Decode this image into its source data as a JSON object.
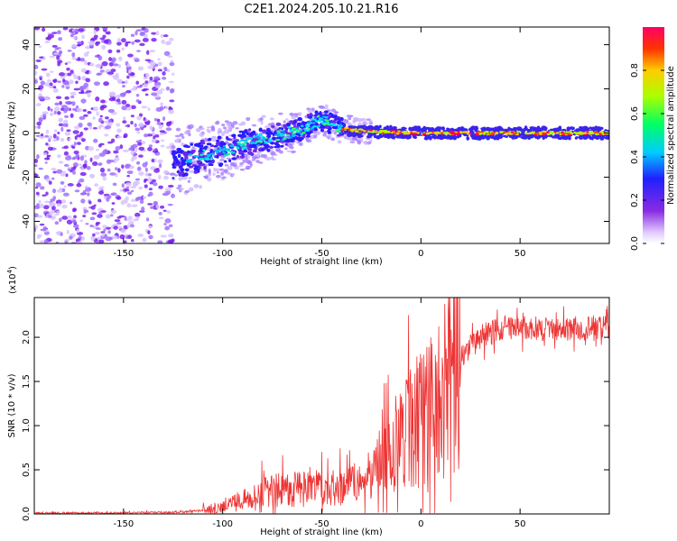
{
  "title": "C2E1.2024.205.10.21.R16",
  "chart_data": [
    {
      "type": "heatmap",
      "xlabel": "Height of straight line (km)",
      "ylabel": "Frequency (Hz)",
      "xlim": [
        -195,
        95
      ],
      "ylim": [
        -50,
        48
      ],
      "xticks": [
        -150,
        -100,
        -50,
        0,
        50
      ],
      "yticks": [
        -40,
        -20,
        0,
        20,
        40
      ],
      "colorbar": {
        "label": "Normalized spectral amplitude",
        "range": [
          0.0,
          1.0
        ],
        "ticks": [
          "0.0",
          "0.2",
          "0.4",
          "0.6",
          "0.8"
        ]
      },
      "trace_x": [
        -125,
        -110,
        -100,
        -90,
        -80,
        -70,
        -60,
        -50,
        -45,
        -40,
        -30,
        -20,
        -10,
        0,
        20,
        40,
        60,
        95
      ],
      "trace_y": [
        -14,
        -10,
        -8,
        -5,
        -3,
        -1,
        2,
        6,
        4,
        2,
        1,
        0.5,
        0.2,
        0,
        0,
        0,
        0,
        0
      ]
    },
    {
      "type": "line",
      "xlabel": "Height of straight line (km)",
      "ylabel": "SNR (10 * v/v)",
      "exponent_label": "(x10",
      "exponent_power": "4",
      "exponent_close": ")",
      "xlim": [
        -195,
        95
      ],
      "ylim": [
        0,
        2.45
      ],
      "xticks": [
        -150,
        -100,
        -50,
        0,
        50
      ],
      "yticks": [
        "0.0",
        "0.5",
        "1.0",
        "1.5",
        "2.0"
      ],
      "series": [
        {
          "name": "SNR",
          "color": "#ee3333",
          "x": [
            -195,
            -150,
            -125,
            -110,
            -100,
            -90,
            -80,
            -70,
            -60,
            -50,
            -40,
            -30,
            -25,
            -20,
            -15,
            -10,
            -5,
            0,
            5,
            10,
            15,
            20,
            25,
            30,
            35,
            40,
            50,
            60,
            70,
            80,
            95
          ],
          "y": [
            0.01,
            0.01,
            0.02,
            0.04,
            0.08,
            0.17,
            0.25,
            0.28,
            0.28,
            0.3,
            0.32,
            0.35,
            0.45,
            0.6,
            0.75,
            0.85,
            1.0,
            1.1,
            1.2,
            1.35,
            1.55,
            1.75,
            1.9,
            2.0,
            2.05,
            2.1,
            2.1,
            2.1,
            2.1,
            2.1,
            2.1
          ]
        }
      ]
    }
  ]
}
